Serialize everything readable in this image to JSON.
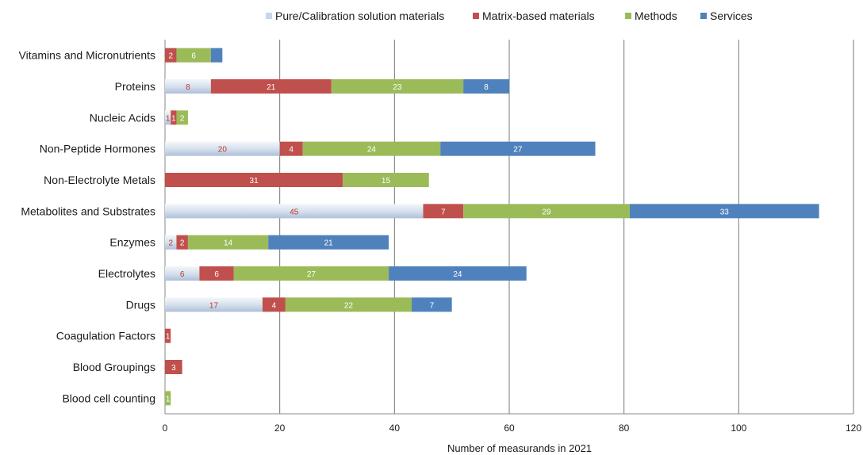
{
  "chart_data": {
    "type": "bar",
    "orientation": "horizontal",
    "stacked": true,
    "xlabel": "Number of  measurands in 2021",
    "xlim": [
      0,
      120
    ],
    "xticks": [
      0,
      20,
      40,
      60,
      80,
      100,
      120
    ],
    "grid": "vertical",
    "legend_position": "top",
    "categories": [
      "Vitamins and Micronutrients",
      "Proteins",
      "Nucleic Acids",
      "Non-Peptide Hormones",
      "Non-Electrolyte Metals",
      "Metabolites and Substrates",
      "Enzymes",
      "Electrolytes",
      "Drugs",
      "Coagulation Factors",
      "Blood Groupings",
      "Blood cell counting"
    ],
    "series": [
      {
        "name": "Pure/Calibration solution materials",
        "color": "#c9d6e8",
        "label_color": "#c0392b",
        "values": [
          0,
          8,
          1,
          20,
          0,
          45,
          2,
          6,
          17,
          null,
          0,
          null
        ],
        "labels": [
          "0",
          "8",
          "1",
          "20",
          "0",
          "45",
          "2",
          "6",
          "17",
          "",
          "0",
          ""
        ]
      },
      {
        "name": "Matrix-based materials",
        "color": "#c0504d",
        "label_color": "#ffffff",
        "values": [
          2,
          21,
          1,
          4,
          31,
          7,
          2,
          6,
          4,
          1,
          3,
          null
        ],
        "labels": [
          "2",
          "21",
          "1",
          "4",
          "31",
          "7",
          "2",
          "6",
          "4",
          "1",
          "3",
          ""
        ]
      },
      {
        "name": "Methods",
        "color": "#9bbb59",
        "label_color": "#ffffff",
        "values": [
          6,
          23,
          2,
          24,
          15,
          29,
          14,
          27,
          22,
          null,
          null,
          1
        ],
        "labels": [
          "6",
          "23",
          "2",
          "24",
          "15",
          "29",
          "14",
          "27",
          "22",
          "",
          "",
          "1"
        ]
      },
      {
        "name": "Services",
        "color": "#4f81bd",
        "label_color": "#ffffff",
        "values": [
          2,
          8,
          null,
          27,
          null,
          33,
          21,
          24,
          7,
          null,
          null,
          null
        ],
        "labels": [
          "",
          "8",
          "",
          "27",
          "",
          "33",
          "21",
          "24",
          "7",
          "",
          "",
          ""
        ]
      }
    ]
  }
}
